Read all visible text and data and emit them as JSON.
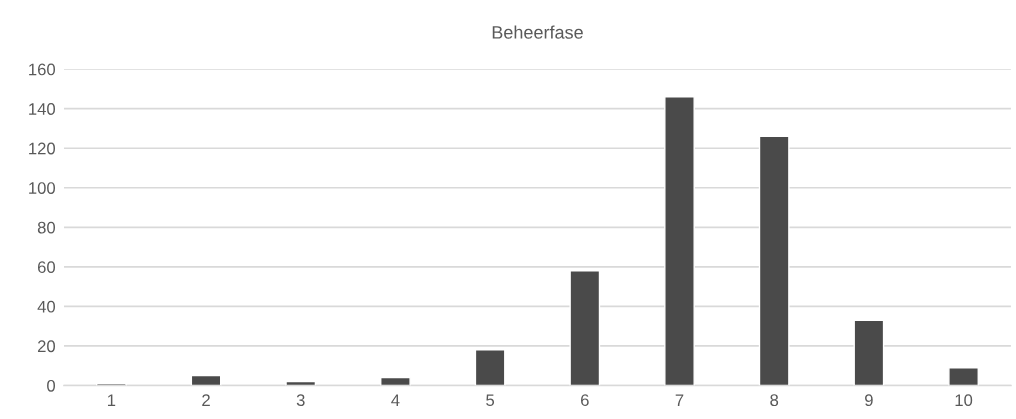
{
  "chart_data": {
    "type": "bar",
    "title": "Beheerfase",
    "categories": [
      "1",
      "2",
      "3",
      "4",
      "5",
      "6",
      "7",
      "8",
      "9",
      "10"
    ],
    "values": [
      1,
      5,
      2,
      4,
      18,
      58,
      146,
      126,
      33,
      9
    ],
    "color": "#4a4a4a",
    "ylim": [
      0,
      160
    ],
    "yticks": [
      0,
      20,
      40,
      60,
      80,
      100,
      120,
      140,
      160
    ],
    "grid": "y"
  }
}
